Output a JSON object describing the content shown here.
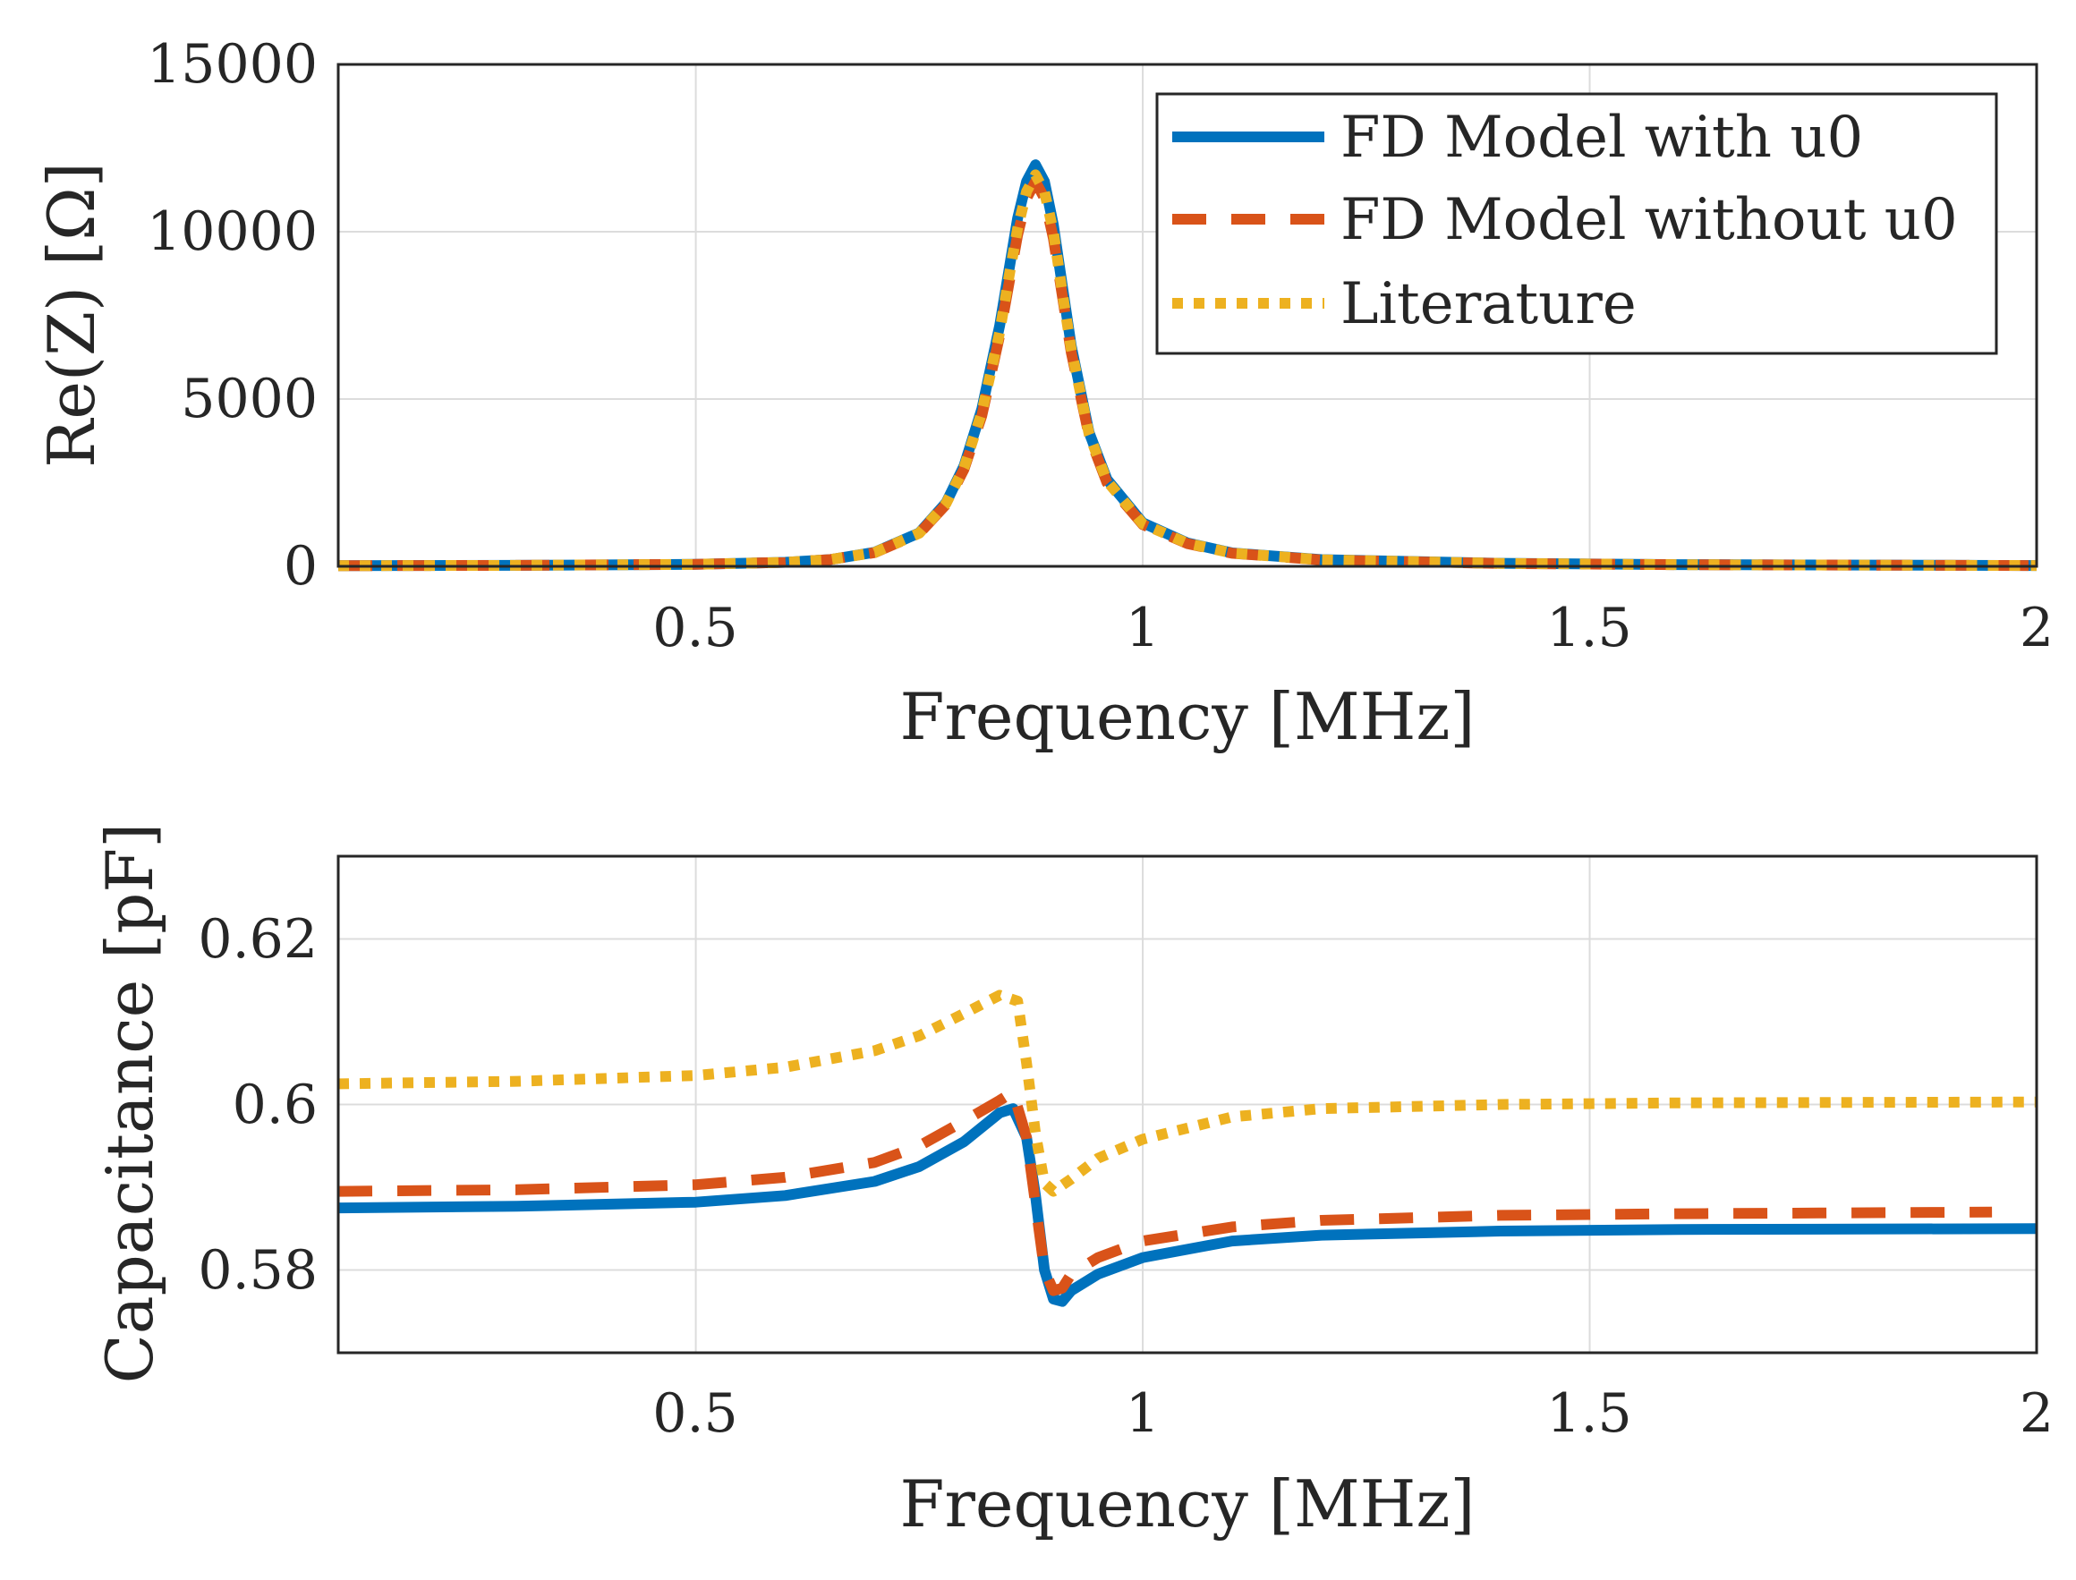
{
  "colors": {
    "series_with_u0": "#0072BD",
    "series_without_u0": "#D95319",
    "series_literature": "#EDB120",
    "axes": "#262626",
    "grid": "#dcdcdc"
  },
  "chart_data": [
    {
      "type": "line",
      "id": "impedance",
      "title": "",
      "xlabel": "Frequency [MHz]",
      "ylabel": "Re(Z) [Ω]",
      "xlim": [
        0.1,
        2.0
      ],
      "ylim": [
        0,
        15000
      ],
      "xticks": [
        0.5,
        1,
        1.5,
        2
      ],
      "xtick_labels": [
        "0.5",
        "1",
        "1.5",
        "2"
      ],
      "yticks": [
        0,
        5000,
        10000,
        15000
      ],
      "ytick_labels": [
        "0",
        "5000",
        "10000",
        "15000"
      ],
      "grid": true,
      "legend": {
        "position": "top-right",
        "entries": [
          "FD Model with u0",
          "FD Model without u0",
          "Literature"
        ]
      },
      "series": [
        {
          "name": "FD Model with u0",
          "style": "solid",
          "x": [
            0.1,
            0.3,
            0.5,
            0.6,
            0.65,
            0.7,
            0.75,
            0.78,
            0.8,
            0.82,
            0.84,
            0.85,
            0.86,
            0.87,
            0.88,
            0.89,
            0.9,
            0.91,
            0.92,
            0.94,
            0.96,
            1.0,
            1.05,
            1.1,
            1.2,
            1.4,
            1.6,
            2.0
          ],
          "y": [
            20,
            30,
            60,
            120,
            200,
            420,
            1000,
            1900,
            3000,
            4700,
            7200,
            8800,
            10400,
            11500,
            12000,
            11500,
            10200,
            8400,
            6600,
            4000,
            2600,
            1300,
            700,
            400,
            200,
            90,
            50,
            25
          ]
        },
        {
          "name": "FD Model without u0",
          "style": "dashed",
          "x": [
            0.1,
            0.3,
            0.5,
            0.6,
            0.65,
            0.7,
            0.75,
            0.78,
            0.8,
            0.82,
            0.84,
            0.85,
            0.86,
            0.87,
            0.88,
            0.89,
            0.9,
            0.91,
            0.92,
            0.94,
            0.96,
            1.0,
            1.05,
            1.1,
            1.2,
            1.4,
            1.6,
            2.0
          ],
          "y": [
            20,
            30,
            60,
            120,
            200,
            410,
            980,
            1850,
            2900,
            4500,
            6900,
            8400,
            9900,
            11000,
            11500,
            11000,
            9800,
            8100,
            6400,
            3900,
            2500,
            1250,
            680,
            390,
            190,
            85,
            48,
            24
          ]
        },
        {
          "name": "Literature",
          "style": "dotted",
          "x": [
            0.1,
            0.3,
            0.5,
            0.6,
            0.65,
            0.7,
            0.75,
            0.78,
            0.8,
            0.82,
            0.84,
            0.85,
            0.86,
            0.87,
            0.88,
            0.89,
            0.9,
            0.91,
            0.92,
            0.94,
            0.96,
            1.0,
            1.05,
            1.1,
            1.2,
            1.4,
            1.6,
            2.0
          ],
          "y": [
            20,
            30,
            60,
            120,
            200,
            415,
            990,
            1880,
            2950,
            4600,
            7000,
            8600,
            10100,
            11200,
            11700,
            11200,
            10000,
            8200,
            6500,
            3950,
            2550,
            1270,
            690,
            395,
            195,
            88,
            49,
            24
          ]
        }
      ]
    },
    {
      "type": "line",
      "id": "capacitance",
      "title": "",
      "xlabel": "Frequency [MHz]",
      "ylabel": "Capacitance [pF]",
      "xlim": [
        0.1,
        2.0
      ],
      "ylim": [
        0.57,
        0.63
      ],
      "xticks": [
        0.5,
        1,
        1.5,
        2
      ],
      "xtick_labels": [
        "0.5",
        "1",
        "1.5",
        "2"
      ],
      "yticks": [
        0.58,
        0.6,
        0.62
      ],
      "ytick_labels": [
        "0.58",
        "0.6",
        "0.62"
      ],
      "grid": true,
      "series": [
        {
          "name": "FD Model with u0",
          "style": "solid",
          "x": [
            0.1,
            0.3,
            0.5,
            0.6,
            0.7,
            0.75,
            0.8,
            0.84,
            0.855,
            0.87,
            0.88,
            0.89,
            0.9,
            0.91,
            0.92,
            0.95,
            1.0,
            1.1,
            1.2,
            1.4,
            1.6,
            2.0
          ],
          "y": [
            0.5875,
            0.5877,
            0.5882,
            0.589,
            0.5907,
            0.5925,
            0.5955,
            0.599,
            0.5995,
            0.596,
            0.589,
            0.58,
            0.5765,
            0.5762,
            0.5775,
            0.5795,
            0.5815,
            0.5835,
            0.5842,
            0.5847,
            0.5849,
            0.585
          ]
        },
        {
          "name": "FD Model without u0",
          "style": "dashed",
          "x": [
            0.1,
            0.3,
            0.5,
            0.6,
            0.7,
            0.75,
            0.8,
            0.84,
            0.855,
            0.87,
            0.88,
            0.89,
            0.9,
            0.91,
            0.92,
            0.95,
            1.0,
            1.1,
            1.2,
            1.4,
            1.6,
            1.95
          ],
          "y": [
            0.5895,
            0.5897,
            0.5903,
            0.5912,
            0.593,
            0.595,
            0.598,
            0.6005,
            0.6015,
            0.596,
            0.588,
            0.58,
            0.5775,
            0.5778,
            0.5795,
            0.5815,
            0.5835,
            0.5852,
            0.586,
            0.5866,
            0.5868,
            0.587
          ]
        },
        {
          "name": "Literature",
          "style": "dotted",
          "x": [
            0.1,
            0.3,
            0.5,
            0.6,
            0.7,
            0.75,
            0.8,
            0.84,
            0.86,
            0.87,
            0.88,
            0.89,
            0.9,
            0.92,
            0.95,
            1.0,
            1.1,
            1.2,
            1.4,
            1.6,
            2.0
          ],
          "y": [
            0.6025,
            0.6028,
            0.6035,
            0.6045,
            0.6065,
            0.6083,
            0.611,
            0.6132,
            0.6125,
            0.605,
            0.5965,
            0.5905,
            0.5895,
            0.591,
            0.5935,
            0.5958,
            0.5985,
            0.5995,
            0.6,
            0.6002,
            0.6003
          ]
        }
      ]
    }
  ]
}
